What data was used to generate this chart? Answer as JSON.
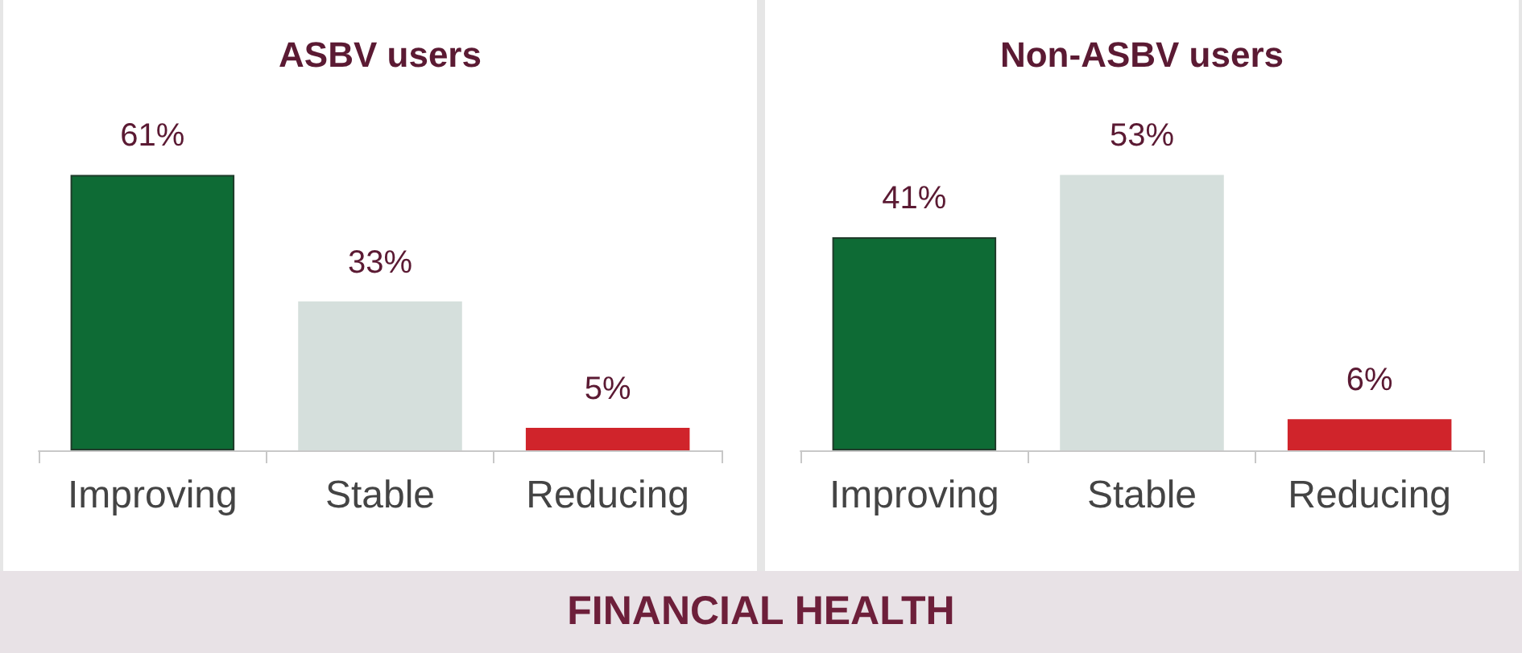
{
  "chart_data": [
    {
      "type": "bar",
      "title": "ASBV users",
      "categories": [
        "Improving",
        "Stable",
        "Reducing"
      ],
      "values": [
        61,
        33,
        5
      ],
      "colors": [
        "#0e6b35",
        "#d5dfdc",
        "#d0242b"
      ],
      "value_labels": [
        "61%",
        "33%",
        "5%"
      ],
      "tick_labels": "x",
      "annotations": [
        "FINANCIAL HEALTH"
      ]
    },
    {
      "type": "bar",
      "title": "Non-ASBV users",
      "categories": [
        "Improving",
        "Stable",
        "Reducing"
      ],
      "values": [
        41,
        53,
        6
      ],
      "colors": [
        "#0e6b35",
        "#d5dfdc",
        "#d0242b"
      ],
      "value_labels": [
        "41%",
        "53%",
        "6%"
      ],
      "tick_labels": "x"
    }
  ]
}
